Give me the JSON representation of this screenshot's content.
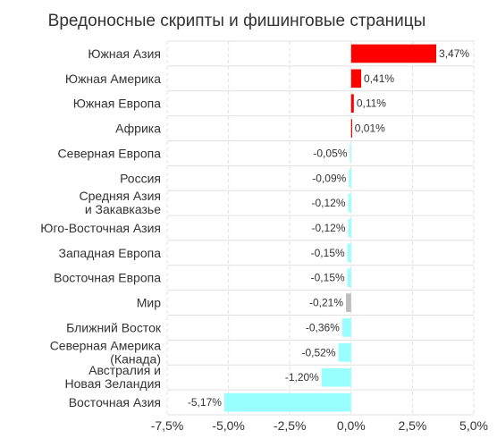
{
  "chart_data": {
    "type": "bar",
    "orientation": "horizontal",
    "title": "Вредоносные скрипты и фишинговые страницы",
    "xlabel": "",
    "ylabel": "",
    "categories": [
      "Южная Азия",
      "Южная Америка",
      "Южная Европа",
      "Африка",
      "Северная Европа",
      "Россия",
      "Средняя Азия и Закавказье",
      "Юго-Восточная Азия",
      "Западная Европа",
      "Восточная Европа",
      "Мир",
      "Ближний Восток",
      "Северная Америка (Канада)",
      "Австралия и Новая Зеландия",
      "Восточная Азия"
    ],
    "values": [
      3.47,
      0.41,
      0.11,
      0.01,
      -0.05,
      -0.09,
      -0.12,
      -0.12,
      -0.15,
      -0.15,
      -0.21,
      -0.36,
      -0.52,
      -1.2,
      -5.17
    ],
    "value_labels": [
      "3,47%",
      "0,41%",
      "0,11%",
      "0,01%",
      "-0,05%",
      "-0,09%",
      "-0,12%",
      "-0,12%",
      "-0,15%",
      "-0,15%",
      "-0,21%",
      "-0,36%",
      "-0,52%",
      "-1,20%",
      "-5,17%"
    ],
    "colors": {
      "positive": "#ff0000",
      "negative": "#99ffff",
      "world": "#bdbdbd",
      "grid": "#e0e0e0",
      "text": "#333333"
    },
    "xlim": [
      -7.5,
      5.0
    ],
    "xticks": [
      -7.5,
      -5.0,
      -2.5,
      0.0,
      2.5,
      5.0
    ],
    "xtick_labels": [
      "-7,5%",
      "-5,0%",
      "-2,5%",
      "0,0%",
      "2,5%",
      "5,0%"
    ],
    "grid": true,
    "legend": "none"
  }
}
